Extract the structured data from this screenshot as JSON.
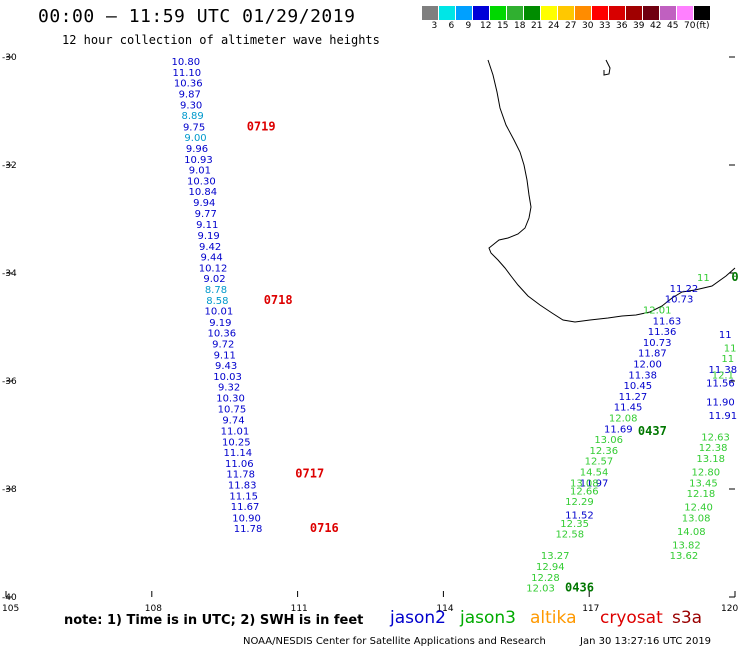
{
  "header": {
    "title": "00:00 — 11:59 UTC 01/29/2019",
    "subtitle": "12 hour collection of altimeter wave heights"
  },
  "colorbar": {
    "colors": [
      "#7f7f7f",
      "#00e6e6",
      "#00a0ff",
      "#0000d8",
      "#00d800",
      "#30b030",
      "#008c00",
      "#ffff00",
      "#ffc800",
      "#ff8c00",
      "#ff0000",
      "#d80000",
      "#a00000",
      "#700010",
      "#c060c0",
      "#ff80ff",
      "#000000"
    ],
    "labels": [
      "3",
      "6",
      "9",
      "12",
      "15",
      "18",
      "21",
      "24",
      "27",
      "30",
      "33",
      "36",
      "39",
      "42",
      "45",
      "70",
      "(ft)"
    ]
  },
  "axes": {
    "lat_labels": [
      "-30",
      "-32",
      "-34",
      "-36",
      "-38",
      "-40"
    ],
    "lon_labels": [
      "105",
      "108",
      "111",
      "114",
      "117",
      "120"
    ]
  },
  "chart_data": {
    "type": "scatter",
    "x_axis": "longitude",
    "y_axis": "latitude",
    "xlim": [
      105,
      120
    ],
    "ylim": [
      -40,
      -30
    ],
    "series": [
      {
        "name": "jason2",
        "color": "#0000cc",
        "points": [
          {
            "lon": 108.7,
            "lat": -30.15,
            "v": "10.80",
            "c": "#0000cc"
          },
          {
            "lon": 108.72,
            "lat": -30.35,
            "v": "11.10",
            "c": "#0000cc"
          },
          {
            "lon": 108.75,
            "lat": -30.55,
            "v": "10.36",
            "c": "#0000cc"
          },
          {
            "lon": 108.78,
            "lat": -30.75,
            "v": "9.87",
            "c": "#0000cc"
          },
          {
            "lon": 108.81,
            "lat": -30.95,
            "v": "9.30",
            "c": "#0000cc"
          },
          {
            "lon": 108.84,
            "lat": -31.15,
            "v": "8.89",
            "c": "#0099cc"
          },
          {
            "lon": 108.87,
            "lat": -31.36,
            "v": "9.75",
            "c": "#0000cc"
          },
          {
            "lon": 108.9,
            "lat": -31.56,
            "v": "9.00",
            "c": "#0099cc"
          },
          {
            "lon": 108.93,
            "lat": -31.76,
            "v": "9.96",
            "c": "#0000cc"
          },
          {
            "lon": 108.96,
            "lat": -31.96,
            "v": "10.93",
            "c": "#0000cc"
          },
          {
            "lon": 108.99,
            "lat": -32.16,
            "v": "9.01",
            "c": "#0000cc"
          },
          {
            "lon": 109.02,
            "lat": -32.36,
            "v": "10.30",
            "c": "#0000cc"
          },
          {
            "lon": 109.05,
            "lat": -32.56,
            "v": "10.84",
            "c": "#0000cc"
          },
          {
            "lon": 109.08,
            "lat": -32.76,
            "v": "9.94",
            "c": "#0000cc"
          },
          {
            "lon": 109.11,
            "lat": -32.96,
            "v": "9.77",
            "c": "#0000cc"
          },
          {
            "lon": 109.14,
            "lat": -33.17,
            "v": "9.11",
            "c": "#0000cc"
          },
          {
            "lon": 109.17,
            "lat": -33.37,
            "v": "9.19",
            "c": "#0000cc"
          },
          {
            "lon": 109.2,
            "lat": -33.57,
            "v": "9.42",
            "c": "#0000cc"
          },
          {
            "lon": 109.23,
            "lat": -33.77,
            "v": "9.44",
            "c": "#0000cc"
          },
          {
            "lon": 109.26,
            "lat": -33.97,
            "v": "10.12",
            "c": "#0000cc"
          },
          {
            "lon": 109.29,
            "lat": -34.17,
            "v": "9.02",
            "c": "#0000cc"
          },
          {
            "lon": 109.32,
            "lat": -34.37,
            "v": "8.78",
            "c": "#0099cc"
          },
          {
            "lon": 109.35,
            "lat": -34.57,
            "v": "8.58",
            "c": "#0099cc"
          },
          {
            "lon": 109.38,
            "lat": -34.77,
            "v": "10.01",
            "c": "#0000cc"
          },
          {
            "lon": 109.41,
            "lat": -34.98,
            "v": "9.19",
            "c": "#0000cc"
          },
          {
            "lon": 109.44,
            "lat": -35.18,
            "v": "10.36",
            "c": "#0000cc"
          },
          {
            "lon": 109.47,
            "lat": -35.38,
            "v": "9.72",
            "c": "#0000cc"
          },
          {
            "lon": 109.5,
            "lat": -35.58,
            "v": "9.11",
            "c": "#0000cc"
          },
          {
            "lon": 109.53,
            "lat": -35.78,
            "v": "9.43",
            "c": "#0000cc"
          },
          {
            "lon": 109.56,
            "lat": -35.98,
            "v": "10.03",
            "c": "#0000cc"
          },
          {
            "lon": 109.59,
            "lat": -36.18,
            "v": "9.32",
            "c": "#0000cc"
          },
          {
            "lon": 109.62,
            "lat": -36.38,
            "v": "10.30",
            "c": "#0000cc"
          },
          {
            "lon": 109.65,
            "lat": -36.58,
            "v": "10.75",
            "c": "#0000cc"
          },
          {
            "lon": 109.68,
            "lat": -36.79,
            "v": "9.74",
            "c": "#0000cc"
          },
          {
            "lon": 109.71,
            "lat": -36.99,
            "v": "11.01",
            "c": "#0000cc"
          },
          {
            "lon": 109.74,
            "lat": -37.19,
            "v": "10.25",
            "c": "#0000cc"
          },
          {
            "lon": 109.77,
            "lat": -37.39,
            "v": "11.14",
            "c": "#0000cc"
          },
          {
            "lon": 109.8,
            "lat": -37.59,
            "v": "11.06",
            "c": "#0000cc"
          },
          {
            "lon": 109.83,
            "lat": -37.79,
            "v": "11.78",
            "c": "#0000cc"
          },
          {
            "lon": 109.86,
            "lat": -37.99,
            "v": "11.83",
            "c": "#0000cc"
          },
          {
            "lon": 109.89,
            "lat": -38.19,
            "v": "11.15",
            "c": "#0000cc"
          },
          {
            "lon": 109.92,
            "lat": -38.39,
            "v": "11.67",
            "c": "#0000cc"
          },
          {
            "lon": 109.95,
            "lat": -38.6,
            "v": "10.90",
            "c": "#0000cc"
          },
          {
            "lon": 109.98,
            "lat": -38.8,
            "v": "11.78",
            "c": "#0000cc"
          },
          {
            "lon": 118.95,
            "lat": -34.35,
            "v": "11.22",
            "c": "#0000cc"
          },
          {
            "lon": 118.85,
            "lat": -34.55,
            "v": "10.73",
            "c": "#0000cc"
          },
          {
            "lon": 118.6,
            "lat": -34.95,
            "v": "11.63",
            "c": "#0000cc"
          },
          {
            "lon": 118.5,
            "lat": -35.15,
            "v": "11.36",
            "c": "#0000cc"
          },
          {
            "lon": 118.4,
            "lat": -35.35,
            "v": "10.73",
            "c": "#0000cc"
          },
          {
            "lon": 118.3,
            "lat": -35.55,
            "v": "11.87",
            "c": "#0000cc"
          },
          {
            "lon": 118.2,
            "lat": -35.75,
            "v": "12.00",
            "c": "#0000cc"
          },
          {
            "lon": 118.1,
            "lat": -35.95,
            "v": "11.38",
            "c": "#0000cc"
          },
          {
            "lon": 118.0,
            "lat": -36.15,
            "v": "10.45",
            "c": "#0000cc"
          },
          {
            "lon": 117.9,
            "lat": -36.35,
            "v": "11.27",
            "c": "#0000cc"
          },
          {
            "lon": 117.8,
            "lat": -36.55,
            "v": "11.45",
            "c": "#0000cc"
          },
          {
            "lon": 117.6,
            "lat": -36.95,
            "v": "11.69",
            "c": "#0000cc"
          },
          {
            "lon": 117.1,
            "lat": -37.95,
            "v": "11.97",
            "c": "#0000cc"
          },
          {
            "lon": 116.8,
            "lat": -38.55,
            "v": "11.52",
            "c": "#0000cc"
          },
          {
            "lon": 119.8,
            "lat": -35.2,
            "v": "11",
            "c": "#0000cc"
          },
          {
            "lon": 119.75,
            "lat": -35.85,
            "v": "11.38",
            "c": "#0000cc"
          },
          {
            "lon": 119.7,
            "lat": -36.1,
            "v": "11.56",
            "c": "#0000cc"
          },
          {
            "lon": 119.7,
            "lat": -36.45,
            "v": "11.90",
            "c": "#0000cc"
          },
          {
            "lon": 119.75,
            "lat": -36.7,
            "v": "11.91",
            "c": "#0000cc"
          }
        ]
      },
      {
        "name": "jason3",
        "color": "#00aa00",
        "points": [
          {
            "lon": 119.35,
            "lat": -34.15,
            "v": "11",
            "c": "#33cc33"
          },
          {
            "lon": 118.4,
            "lat": -34.75,
            "v": "12.01",
            "c": "#33cc33"
          },
          {
            "lon": 117.7,
            "lat": -36.75,
            "v": "12.08",
            "c": "#33cc33"
          },
          {
            "lon": 117.4,
            "lat": -37.15,
            "v": "13.06",
            "c": "#33cc33"
          },
          {
            "lon": 117.3,
            "lat": -37.35,
            "v": "12.36",
            "c": "#33cc33"
          },
          {
            "lon": 117.2,
            "lat": -37.55,
            "v": "12.57",
            "c": "#33cc33"
          },
          {
            "lon": 117.1,
            "lat": -37.75,
            "v": "14.54",
            "c": "#33cc33"
          },
          {
            "lon": 116.9,
            "lat": -37.95,
            "v": "13.08",
            "c": "#33cc33"
          },
          {
            "lon": 116.9,
            "lat": -38.1,
            "v": "12.66",
            "c": "#33cc33"
          },
          {
            "lon": 116.8,
            "lat": -38.3,
            "v": "12.29",
            "c": "#33cc33"
          },
          {
            "lon": 116.7,
            "lat": -38.7,
            "v": "12.35",
            "c": "#33cc33"
          },
          {
            "lon": 116.6,
            "lat": -38.9,
            "v": "12.58",
            "c": "#33cc33"
          },
          {
            "lon": 116.3,
            "lat": -39.3,
            "v": "13.27",
            "c": "#33cc33"
          },
          {
            "lon": 116.2,
            "lat": -39.5,
            "v": "12.94",
            "c": "#33cc33"
          },
          {
            "lon": 116.1,
            "lat": -39.7,
            "v": "12.28",
            "c": "#33cc33"
          },
          {
            "lon": 116.0,
            "lat": -39.9,
            "v": "12.03",
            "c": "#33cc33"
          },
          {
            "lon": 119.9,
            "lat": -35.45,
            "v": "11",
            "c": "#33cc33"
          },
          {
            "lon": 119.85,
            "lat": -35.65,
            "v": "11",
            "c": "#33cc33"
          },
          {
            "lon": 119.75,
            "lat": -35.95,
            "v": "12.1",
            "c": "#33cc33"
          },
          {
            "lon": 119.6,
            "lat": -37.1,
            "v": "12.63",
            "c": "#33cc33"
          },
          {
            "lon": 119.55,
            "lat": -37.3,
            "v": "12.38",
            "c": "#33cc33"
          },
          {
            "lon": 119.5,
            "lat": -37.5,
            "v": "13.18",
            "c": "#33cc33"
          },
          {
            "lon": 119.4,
            "lat": -37.75,
            "v": "12.80",
            "c": "#33cc33"
          },
          {
            "lon": 119.35,
            "lat": -37.95,
            "v": "13.45",
            "c": "#33cc33"
          },
          {
            "lon": 119.3,
            "lat": -38.15,
            "v": "12.18",
            "c": "#33cc33"
          },
          {
            "lon": 119.25,
            "lat": -38.4,
            "v": "12.40",
            "c": "#33cc33"
          },
          {
            "lon": 119.2,
            "lat": -38.6,
            "v": "13.08",
            "c": "#33cc33"
          },
          {
            "lon": 119.1,
            "lat": -38.85,
            "v": "14.08",
            "c": "#33cc33"
          },
          {
            "lon": 119.0,
            "lat": -39.1,
            "v": "13.82",
            "c": "#33cc33"
          },
          {
            "lon": 118.95,
            "lat": -39.3,
            "v": "13.62",
            "c": "#33cc33"
          }
        ]
      }
    ],
    "time_labels": [
      {
        "lon": 110.25,
        "lat": -31.36,
        "t": "0719",
        "c": "#dd0000"
      },
      {
        "lon": 110.6,
        "lat": -34.57,
        "t": "0718",
        "c": "#dd0000"
      },
      {
        "lon": 111.25,
        "lat": -37.79,
        "t": "0717",
        "c": "#dd0000"
      },
      {
        "lon": 111.55,
        "lat": -38.8,
        "t": "0716",
        "c": "#dd0000"
      },
      {
        "lon": 118.3,
        "lat": -37.0,
        "t": "0437",
        "c": "#007700"
      },
      {
        "lon": 116.8,
        "lat": -39.9,
        "t": "0436",
        "c": "#007700"
      },
      {
        "lon": 120.0,
        "lat": -34.15,
        "t": "0",
        "c": "#007700"
      }
    ]
  },
  "legend": [
    {
      "name": "jason2",
      "color": "#0000cc"
    },
    {
      "name": "jason3",
      "color": "#00aa00"
    },
    {
      "name": "altika",
      "color": "#ff9900"
    },
    {
      "name": "cryosat",
      "color": "#dd0000"
    },
    {
      "name": "s3a",
      "color": "#990000"
    }
  ],
  "footer": {
    "note": "note: 1) Time is in UTC; 2) SWH is in feet",
    "credit": "NOAA/NESDIS Center for Satellite Applications and Research",
    "timestamp": "Jan 30 13:27:16 UTC 2019"
  }
}
